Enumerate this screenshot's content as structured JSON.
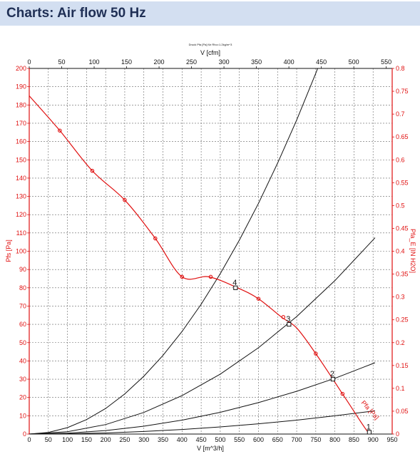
{
  "page": {
    "title": "Charts: Air flow 50 Hz"
  },
  "chart_data": {
    "type": "line",
    "header_note": "Druck Pfa [Pa] für Rho=1.2kg/m^3",
    "top_axis": {
      "label": "V [cfm]",
      "ticks": [
        0,
        50,
        100,
        150,
        200,
        250,
        300,
        350,
        400,
        450,
        500,
        550
      ]
    },
    "x_axis": {
      "label": "V [m^3/h]",
      "lim": [
        0,
        950
      ],
      "ticks": [
        0,
        50,
        100,
        150,
        200,
        250,
        300,
        350,
        400,
        450,
        500,
        550,
        600,
        650,
        700,
        750,
        800,
        850,
        900,
        950
      ]
    },
    "y_axis_left": {
      "label": "Pfs [Pa]",
      "lim": [
        0,
        200
      ],
      "ticks": [
        0,
        10,
        20,
        30,
        40,
        50,
        60,
        70,
        80,
        90,
        100,
        110,
        120,
        130,
        140,
        150,
        160,
        170,
        180,
        190,
        200
      ]
    },
    "y_axis_right": {
      "label": "Pfa_E [IN H2O]",
      "lim": [
        0,
        0.8
      ],
      "ticks": [
        "0",
        "0.05",
        "0.1",
        "0.15",
        "0.2",
        "0.25",
        "0.3",
        "0.35",
        "0.4",
        "0.45",
        "0.5",
        "0.55",
        "0.6",
        "0.65",
        "0.7",
        "0.75",
        "0.8"
      ]
    },
    "grid": true,
    "fan_curve": {
      "name": "Pfa [Pa]",
      "color": "#e01010",
      "x": [
        0,
        80,
        165,
        250,
        330,
        400,
        470,
        545,
        600,
        660,
        700,
        750,
        820,
        870,
        890
      ],
      "y": [
        185,
        166,
        144,
        128,
        107,
        86,
        86,
        80,
        74,
        64,
        58,
        44,
        22,
        6,
        0
      ],
      "markers": [
        [
          80,
          166
        ],
        [
          165,
          144
        ],
        [
          250,
          128
        ],
        [
          330,
          107
        ],
        [
          400,
          86
        ],
        [
          475,
          86
        ],
        [
          600,
          74
        ],
        [
          665,
          64
        ],
        [
          750,
          44
        ],
        [
          820,
          22
        ]
      ]
    },
    "system_curves": [
      {
        "x": [
          0,
          50,
          100,
          150,
          200,
          250,
          300,
          350,
          400,
          450,
          500,
          550,
          600,
          650,
          700,
          750,
          800,
          825
        ],
        "y": [
          0,
          0.9,
          3.5,
          7.9,
          14.0,
          21.9,
          31.6,
          43.0,
          56.1,
          71.0,
          87.7,
          106.1,
          126.2,
          148.2,
          171.8,
          197.3,
          224.4,
          238.7
        ]
      },
      {
        "x": [
          0,
          100,
          200,
          300,
          400,
          500,
          600,
          700,
          800,
          900,
          950
        ],
        "y": [
          0,
          1.3,
          5.2,
          11.8,
          21.0,
          32.8,
          47.2,
          64.3,
          83.9,
          106.2,
          118.4
        ]
      },
      {
        "x": [
          0,
          100,
          200,
          300,
          400,
          500,
          600,
          700,
          800,
          900,
          950
        ],
        "y": [
          0,
          0.5,
          1.9,
          4.3,
          7.6,
          11.9,
          17.2,
          23.4,
          30.5,
          38.6,
          43.0
        ]
      },
      {
        "x": [
          0,
          100,
          200,
          300,
          400,
          500,
          600,
          700,
          800,
          900,
          950
        ],
        "y": [
          0,
          0.15,
          0.6,
          1.4,
          2.5,
          3.9,
          5.6,
          7.6,
          10.0,
          12.6,
          14.0
        ]
      }
    ],
    "operating_points": [
      {
        "label": "1",
        "x": 890,
        "y": 1
      },
      {
        "label": "2",
        "x": 795,
        "y": 30
      },
      {
        "label": "3",
        "x": 680,
        "y": 60
      },
      {
        "label": "4",
        "x": 540,
        "y": 80
      }
    ],
    "plotted_ranges": {
      "system_curve_1_x_max": 825,
      "system_curve_others_x_max": 905
    }
  }
}
